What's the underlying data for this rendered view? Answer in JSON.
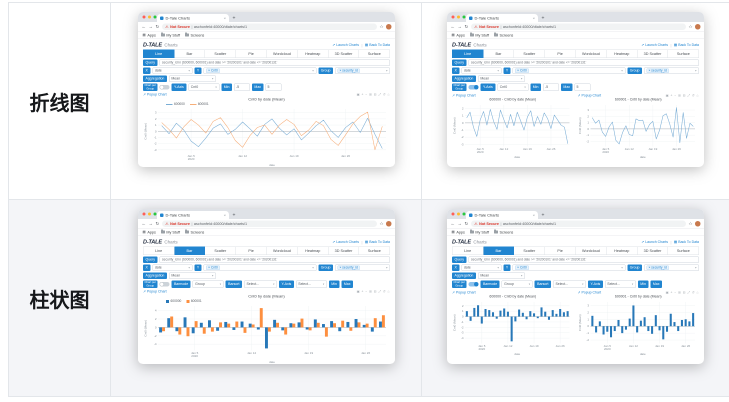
{
  "rows": [
    {
      "label": "折线图"
    },
    {
      "label": "柱状图"
    }
  ],
  "browser": {
    "tab_title": "D-Tale Charts",
    "close_glyph": "×",
    "new_tab": "+",
    "back": "←",
    "forward": "→",
    "reload": "↻",
    "warn_icon": "⚠",
    "not_secure": "Not Secure",
    "url_sep": "|",
    "url": "aschonfeld:40000/dtale/charts/1",
    "star": "☆",
    "bookmarks": [
      "Apps",
      "My Stuff",
      "Screens"
    ]
  },
  "app": {
    "logo": "D-TALE",
    "logo_sub": "Charts",
    "launch_icon": "↗",
    "back_icon": "▦",
    "links": {
      "launch": "Launch Charts",
      "back": "Back To Data"
    },
    "tabs": [
      "Line",
      "Bar",
      "Scatter",
      "Pie",
      "Wordcloud",
      "Heatmap",
      "3D Scatter",
      "Surface"
    ],
    "query_label": "Query",
    "query_value": "security_id in (600000, 600001) and date >= '20200101' and date <= '20200131'",
    "x_label": "X",
    "x_value": "date",
    "y_label": "Y",
    "y_chip": "× Cnt0",
    "group_label": "Group",
    "group_chip": "× security_id",
    "agg_label": "Aggregation",
    "agg_value": "Mean",
    "cpg_label1": "Chart per",
    "cpg_label2": "Group",
    "yaxis_label": "Y-Axis",
    "yaxis_value": "Cnt0",
    "min_label": "Min",
    "min_value": "-5",
    "max_label": "Max",
    "max_value": "5",
    "barmode_label": "Barmode",
    "barmode_value": "Group",
    "barsort_label": "Barsort",
    "barsort_value": "Select...",
    "yaxis_select_value": "Select...",
    "popup_icon": "↗",
    "popup_link": "Popup Chart",
    "caret": "▾",
    "modebar_glyphs": "▣ + − ⊞ ⊟ ⤢ ↺ ⌂",
    "accent_color": "#2185d0"
  },
  "chart_data": [
    {
      "type": "line",
      "title": "Cnt0 by date (Mean)",
      "xlabel": "date",
      "ylabel": "Cnt0 (Mean)",
      "legend_position": "top-left",
      "grid": true,
      "xticks": [
        {
          "pos": 4,
          "label": "Jan 5",
          "label2": "2020"
        },
        {
          "pos": 11,
          "label": "Jan 12"
        },
        {
          "pos": 18,
          "label": "Jan 19"
        },
        {
          "pos": 25,
          "label": "Jan 26"
        }
      ],
      "yticks": [
        3,
        2,
        1,
        0,
        -1,
        -2,
        -3
      ],
      "ylim": [
        -3.6,
        3.6
      ],
      "series": [
        {
          "name": "600000",
          "color": "#79add5",
          "values": [
            0.9,
            -0.4,
            1.3,
            0.2,
            -1.6,
            -2.5,
            -1.1,
            0.5,
            1.2,
            -0.5,
            0.3,
            1.5,
            0.4,
            -0.8,
            1.1,
            2.0,
            0.5,
            -0.6,
            0.4,
            -1.4,
            -0.3,
            0.9,
            1.8,
            0.1,
            -1.0,
            0.6,
            1.5,
            -0.2,
            2.1,
            -0.5,
            -2.8
          ]
        },
        {
          "name": "600001",
          "color": "#f6ae79",
          "values": [
            1.4,
            0.3,
            -1.1,
            0.7,
            1.9,
            1.0,
            -0.3,
            1.6,
            2.2,
            0.6,
            -1.5,
            -2.6,
            -0.7,
            0.6,
            1.0,
            -0.5,
            1.0,
            1.9,
            1.1,
            -0.7,
            0.2,
            1.6,
            0.9,
            -1.3,
            -2.3,
            -0.6,
            1.2,
            2.4,
            3.1,
            -3.0,
            0.8
          ]
        }
      ]
    },
    {
      "type": "line",
      "title": "600000 - Cnt0 by date (Mean)",
      "xlabel": "date",
      "ylabel": "Cnt0 (Mean)",
      "grid": true,
      "xticks": [
        {
          "pos": 4,
          "label": "Jan 5",
          "label2": "2020"
        },
        {
          "pos": 11,
          "label": "Jan 12"
        },
        {
          "pos": 18,
          "label": "Jan 19"
        },
        {
          "pos": 25,
          "label": "Jan 26"
        }
      ],
      "yticks": [
        2,
        1,
        0,
        -1,
        -2,
        -3
      ],
      "ylim": [
        -3.3,
        2.5
      ],
      "series": [
        {
          "name": "600000",
          "color": "#79add5",
          "values": [
            0.7,
            1.5,
            -0.6,
            -1.9,
            0.4,
            1.6,
            -0.3,
            1.9,
            0.2,
            -0.9,
            1.8,
            0.5,
            -0.7,
            1.2,
            -0.4,
            1.5,
            0.3,
            -1.0,
            0.8,
            1.7,
            -0.5,
            0.9,
            -0.2,
            1.4,
            0.6,
            -0.8,
            1.1,
            0.4,
            -0.3,
            -0.6,
            -2.9
          ]
        }
      ]
    },
    {
      "type": "line",
      "title": "600001 - Cnt0 by date (Mean)",
      "xlabel": "date",
      "ylabel": "Cnt0 (Mean)",
      "grid": true,
      "xticks": [
        {
          "pos": 4,
          "label": "Jan 5",
          "label2": "2020"
        },
        {
          "pos": 11,
          "label": "Jan 12"
        },
        {
          "pos": 18,
          "label": "Jan 19"
        },
        {
          "pos": 25,
          "label": "Jan 26"
        }
      ],
      "yticks": [
        3,
        2,
        1,
        0,
        -1,
        -2
      ],
      "ylim": [
        -2.8,
        3.8
      ],
      "series": [
        {
          "name": "600001",
          "color": "#79add5",
          "values": [
            1.8,
            0.9,
            1.4,
            -0.5,
            -1.2,
            0.3,
            1.1,
            -1.8,
            -2.4,
            -0.6,
            0.5,
            -0.9,
            -1.1,
            1.6,
            1.3,
            1.4,
            -0.4,
            0.7,
            1.2,
            -1.6,
            -0.2,
            2.1,
            2.4,
            0.8,
            -1.3,
            3.4,
            -2.2,
            2.6,
            -1.5,
            0.9,
            0.4
          ]
        }
      ]
    },
    {
      "type": "bar",
      "title": "Cnt0 by date (Mean)",
      "xlabel": "date",
      "ylabel": "Cnt0 (Mean)",
      "legend_position": "top-left",
      "barmode": "group",
      "grid": true,
      "xticks": [
        {
          "pos": 4,
          "label": "Jan 5",
          "label2": "2020"
        },
        {
          "pos": 11,
          "label": "Jan 12"
        },
        {
          "pos": 18,
          "label": "Jan 19"
        },
        {
          "pos": 25,
          "label": "Jan 26"
        }
      ],
      "yticks": [
        4,
        2,
        0,
        -2,
        -4
      ],
      "ylim": [
        -5.5,
        5.1
      ],
      "series": [
        {
          "name": "600000",
          "color": "#2878b8",
          "values": [
            -1.2,
            2.2,
            -0.9,
            2.4,
            -1.4,
            1.1,
            1.7,
            -0.8,
            1.3,
            -0.6,
            1.4,
            0.9,
            -0.5,
            -5.0,
            1.8,
            -0.7,
            1.0,
            1.2,
            -0.5,
            1.9,
            0.8,
            1.5,
            -0.9,
            1.3,
            2.0,
            0.6,
            -1.0,
            1.4
          ]
        },
        {
          "name": "600001",
          "color": "#fd8f3f",
          "values": [
            -0.9,
            2.6,
            -1.7,
            -2.1,
            1.5,
            -1.5,
            -1.0,
            1.2,
            0.9,
            1.4,
            -1.3,
            0.7,
            4.6,
            -1.0,
            1.1,
            -1.7,
            0.9,
            2.1,
            -0.7,
            1.1,
            -2.2,
            1.0,
            1.6,
            -0.8,
            1.2,
            0.9,
            2.2,
            2.9
          ]
        }
      ]
    },
    {
      "type": "bar",
      "title": "600000 - Cnt0 by date (Mean)",
      "xlabel": "date",
      "ylabel": "Cnt0 (Mean)",
      "grid": true,
      "xticks": [
        {
          "pos": 4,
          "label": "Jan 5",
          "label2": "2020"
        },
        {
          "pos": 11,
          "label": "Jan 12"
        },
        {
          "pos": 18,
          "label": "Jan 19"
        },
        {
          "pos": 25,
          "label": "Jan 26"
        }
      ],
      "yticks": [
        2,
        1,
        0,
        -1,
        -2,
        -3,
        -4
      ],
      "ylim": [
        -5.0,
        2.7
      ],
      "series": [
        {
          "name": "600000",
          "color": "#2878b8",
          "values": [
            1.0,
            -0.8,
            1.6,
            2.1,
            -1.3,
            1.4,
            1.2,
            0.8,
            -0.4,
            1.1,
            1.5,
            0.9,
            -4.6,
            -0.9,
            1.3,
            0.7,
            -0.5,
            1.0,
            0.6,
            -0.3,
            1.7,
            0.9,
            -0.6,
            1.2,
            0.5,
            1.4,
            0.8,
            1.0
          ]
        }
      ]
    },
    {
      "type": "bar",
      "title": "600001 - Cnt0 by date (Mean)",
      "xlabel": "date",
      "ylabel": "Cnt0 (Mean)",
      "grid": true,
      "xticks": [
        {
          "pos": 4,
          "label": "Jan 5",
          "label2": "2020"
        },
        {
          "pos": 11,
          "label": "Jan 12"
        },
        {
          "pos": 18,
          "label": "Jan 19"
        },
        {
          "pos": 25,
          "label": "Jan 26"
        }
      ],
      "yticks": [
        3,
        2,
        1,
        0,
        -1,
        -2
      ],
      "ylim": [
        -2.5,
        3.5
      ],
      "series": [
        {
          "name": "600001",
          "color": "#2878b8",
          "values": [
            1.5,
            -0.9,
            0.7,
            -1.2,
            -0.8,
            -1.6,
            -0.7,
            0.9,
            -1.0,
            -0.5,
            1.1,
            3.0,
            -0.9,
            0.8,
            1.3,
            -0.7,
            -1.1,
            1.6,
            -0.6,
            -1.9,
            -0.8,
            1.8,
            0.6,
            -0.7,
            0.9,
            1.0,
            0.7,
            1.9
          ]
        }
      ]
    }
  ]
}
